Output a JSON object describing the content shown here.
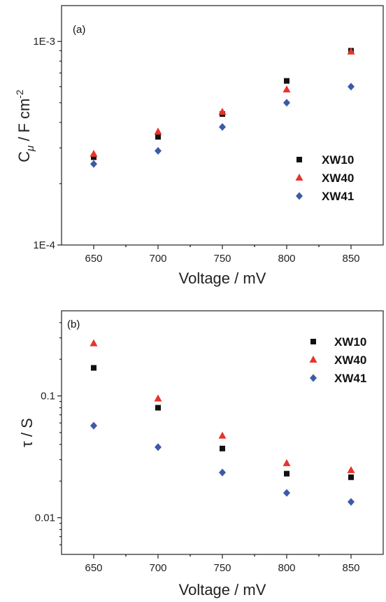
{
  "chart_data": [
    {
      "type": "scatter",
      "panel_label": "(a)",
      "xlabel": "Voltage / mV",
      "ylabel_main": "C",
      "ylabel_sub": "μ",
      "ylabel_rest": " / F cm",
      "ylabel_sup": "-2",
      "yscale": "log",
      "xlim": [
        625,
        875
      ],
      "ylim": [
        0.0001,
        0.0015
      ],
      "x_ticks": [
        650,
        700,
        750,
        800,
        850
      ],
      "x_tick_labels": [
        "650",
        "700",
        "750",
        "800",
        "850"
      ],
      "y_ticks": [
        0.0001,
        0.001
      ],
      "y_tick_labels": [
        "1E-4",
        "1E-3"
      ],
      "legend_position": "middle-right",
      "x": [
        650,
        700,
        750,
        800,
        850
      ],
      "series": [
        {
          "name": "XW10",
          "marker": "square",
          "color": "#111111",
          "values": [
            0.00027,
            0.00034,
            0.00044,
            0.00064,
            0.0009
          ]
        },
        {
          "name": "XW40",
          "marker": "triangle",
          "color": "#e8332c",
          "values": [
            0.00028,
            0.00036,
            0.00045,
            0.00058,
            0.00089
          ]
        },
        {
          "name": "XW41",
          "marker": "diamond",
          "color": "#3b5aa8",
          "values": [
            0.00025,
            0.00029,
            0.00038,
            0.0005,
            0.0006
          ]
        }
      ]
    },
    {
      "type": "scatter",
      "panel_label": "(b)",
      "xlabel": "Voltage / mV",
      "ylabel_main": "τ / S",
      "yscale": "log",
      "xlim": [
        625,
        875
      ],
      "ylim": [
        0.005,
        0.5
      ],
      "x_ticks": [
        650,
        700,
        750,
        800,
        850
      ],
      "x_tick_labels": [
        "650",
        "700",
        "750",
        "800",
        "850"
      ],
      "y_ticks": [
        0.01,
        0.1
      ],
      "y_tick_labels": [
        "0.01",
        "0.1"
      ],
      "legend_position": "top-right",
      "x": [
        650,
        700,
        750,
        800,
        850
      ],
      "series": [
        {
          "name": "XW10",
          "marker": "square",
          "color": "#111111",
          "values": [
            0.17,
            0.08,
            0.037,
            0.023,
            0.0215
          ]
        },
        {
          "name": "XW40",
          "marker": "triangle",
          "color": "#e8332c",
          "values": [
            0.27,
            0.095,
            0.047,
            0.028,
            0.0245
          ]
        },
        {
          "name": "XW41",
          "marker": "diamond",
          "color": "#3b5aa8",
          "values": [
            0.057,
            0.038,
            0.0235,
            0.016,
            0.0135
          ]
        }
      ]
    }
  ]
}
